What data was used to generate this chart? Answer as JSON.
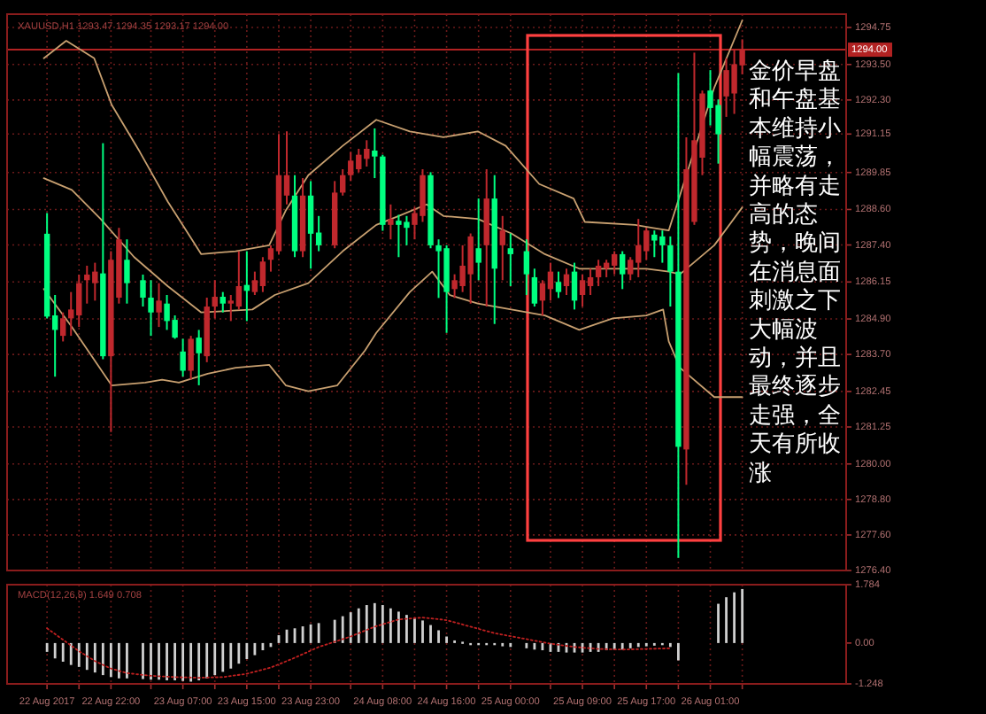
{
  "chart_data": [
    {
      "type": "candlestick",
      "subtitle": "XAUUSD,H1 1293.47 1294.35 1293.17 1294.00",
      "x": [
        "2017-08-22T14:00",
        "2017-08-22T15:00",
        "2017-08-22T16:00",
        "2017-08-22T17:00",
        "2017-08-22T18:00",
        "2017-08-22T19:00",
        "2017-08-22T20:00",
        "2017-08-22T21:00",
        "2017-08-22T22:00",
        "2017-08-22T23:00",
        "2017-08-23T00:00",
        "2017-08-23T02:00",
        "2017-08-23T03:00",
        "2017-08-23T04:00",
        "2017-08-23T05:00",
        "2017-08-23T06:00",
        "2017-08-23T07:00",
        "2017-08-23T08:00",
        "2017-08-23T09:00",
        "2017-08-23T10:00",
        "2017-08-23T11:00",
        "2017-08-23T12:00",
        "2017-08-23T13:00",
        "2017-08-23T14:00",
        "2017-08-23T15:00",
        "2017-08-23T16:00",
        "2017-08-23T17:00",
        "2017-08-23T18:00",
        "2017-08-23T19:00",
        "2017-08-23T20:00",
        "2017-08-23T21:00",
        "2017-08-23T22:00",
        "2017-08-23T23:00",
        "2017-08-24T00:00",
        "2017-08-24T02:00",
        "2017-08-24T03:00",
        "2017-08-24T04:00",
        "2017-08-24T05:00",
        "2017-08-24T06:00",
        "2017-08-24T07:00",
        "2017-08-24T08:00",
        "2017-08-24T09:00",
        "2017-08-24T10:00",
        "2017-08-24T11:00",
        "2017-08-24T12:00",
        "2017-08-24T13:00",
        "2017-08-24T14:00",
        "2017-08-24T15:00",
        "2017-08-24T16:00",
        "2017-08-24T17:00",
        "2017-08-24T18:00",
        "2017-08-24T19:00",
        "2017-08-24T20:00",
        "2017-08-24T21:00",
        "2017-08-24T22:00",
        "2017-08-24T23:00",
        "2017-08-25T00:00",
        "2017-08-25T02:00",
        "2017-08-25T03:00",
        "2017-08-25T04:00",
        "2017-08-25T05:00",
        "2017-08-25T06:00",
        "2017-08-25T07:00",
        "2017-08-25T08:00",
        "2017-08-25T09:00",
        "2017-08-25T10:00",
        "2017-08-25T11:00",
        "2017-08-25T12:00",
        "2017-08-25T13:00",
        "2017-08-25T14:00",
        "2017-08-25T15:00",
        "2017-08-25T16:00",
        "2017-08-25T17:00",
        "2017-08-25T18:00",
        "2017-08-25T19:00",
        "2017-08-25T20:00",
        "2017-08-25T21:00",
        "2017-08-25T22:00",
        "2017-08-25T23:00",
        "2017-08-26T00:00",
        "2017-08-26T01:00",
        "2017-08-26T02:00",
        "2017-08-26T03:00",
        "2017-08-26T04:00",
        "2017-08-26T05:00"
      ],
      "ohlc": [
        [
          1287.78,
          1288.48,
          1284.92,
          1284.98
        ],
        [
          1285.02,
          1285.71,
          1282.95,
          1284.53
        ],
        [
          1284.33,
          1285.12,
          1284.14,
          1284.92
        ],
        [
          1284.92,
          1285.81,
          1284.33,
          1285.22
        ],
        [
          1285.02,
          1286.4,
          1284.63,
          1286.11
        ],
        [
          1286.21,
          1286.7,
          1285.42,
          1286.4
        ],
        [
          1286.11,
          1286.8,
          1285.52,
          1286.5
        ],
        [
          1286.44,
          1290.84,
          1283.54,
          1283.64
        ],
        [
          1283.64,
          1287.19,
          1281.08,
          1286.9
        ],
        [
          1285.62,
          1287.98,
          1285.42,
          1287.59
        ],
        [
          1286.9,
          1287.59,
          1285.42,
          1286.11
        ],
        [
          1286.21,
          1286.4,
          1285.32,
          1285.62
        ],
        [
          1285.62,
          1286.21,
          1284.33,
          1285.12
        ],
        [
          1285.12,
          1286.11,
          1284.63,
          1285.52
        ],
        [
          1285.42,
          1285.71,
          1284.53,
          1284.83
        ],
        [
          1284.87,
          1285.02,
          1284.23,
          1284.27
        ],
        [
          1283.8,
          1284.23,
          1282.95,
          1283.15
        ],
        [
          1283.15,
          1284.33,
          1282.85,
          1284.23
        ],
        [
          1284.27,
          1284.53,
          1282.66,
          1283.74
        ],
        [
          1283.64,
          1285.62,
          1283.44,
          1285.32
        ],
        [
          1285.32,
          1286.21,
          1284.92,
          1285.65
        ],
        [
          1285.65,
          1285.81,
          1285.12,
          1285.42
        ],
        [
          1285.42,
          1285.71,
          1284.83,
          1285.52
        ],
        [
          1285.32,
          1287.19,
          1285.22,
          1286.01
        ],
        [
          1286.05,
          1287.19,
          1284.83,
          1285.85
        ],
        [
          1285.81,
          1286.5,
          1285.71,
          1286.21
        ],
        [
          1286.01,
          1286.99,
          1285.81,
          1286.84
        ],
        [
          1286.9,
          1287.39,
          1286.5,
          1287.29
        ],
        [
          1287.19,
          1291.14,
          1287.09,
          1289.76
        ],
        [
          1289.07,
          1291.24,
          1288.77,
          1289.76
        ],
        [
          1289.07,
          1289.76,
          1286.99,
          1287.19
        ],
        [
          1287.19,
          1289.66,
          1286.99,
          1289.07
        ],
        [
          1289.07,
          1289.56,
          1286.6,
          1287.78
        ],
        [
          1287.82,
          1288.38,
          1287.19,
          1287.39
        ],
        [
          1287.39,
          1289.56,
          1287.29,
          1289.17
        ],
        [
          1289.17,
          1289.96,
          1289.07,
          1289.76
        ],
        [
          1289.76,
          1290.55,
          1289.56,
          1290.25
        ],
        [
          1289.96,
          1290.65,
          1289.86,
          1290.45
        ],
        [
          1290.31,
          1290.94,
          1290.05,
          1290.65
        ],
        [
          1290.59,
          1291.34,
          1289.66,
          1290.39
        ],
        [
          1290.39,
          1290.45,
          1287.88,
          1288.08
        ],
        [
          1288.08,
          1288.77,
          1287.59,
          1288.28
        ],
        [
          1288.22,
          1288.42,
          1286.99,
          1288.08
        ],
        [
          1288.18,
          1288.38,
          1287.39,
          1287.98
        ],
        [
          1288.08,
          1288.67,
          1287.59,
          1288.48
        ],
        [
          1288.38,
          1289.96,
          1288.18,
          1289.76
        ],
        [
          1289.76,
          1289.86,
          1287.29,
          1287.39
        ],
        [
          1287.39,
          1287.59,
          1285.61,
          1287.19
        ],
        [
          1287.29,
          1287.39,
          1284.43,
          1285.81
        ],
        [
          1285.91,
          1286.41,
          1285.61,
          1286.21
        ],
        [
          1286.01,
          1287.39,
          1285.81,
          1286.7
        ],
        [
          1286.41,
          1287.79,
          1285.42,
          1287.69
        ],
        [
          1287.29,
          1288.97,
          1286.21,
          1286.8
        ],
        [
          1287.39,
          1289.96,
          1285.32,
          1288.97
        ],
        [
          1288.97,
          1289.76,
          1284.73,
          1286.6
        ],
        [
          1287.39,
          1288.38,
          1286.21,
          1287.89
        ],
        [
          1287.29,
          1287.79,
          1286.01,
          1287.09
        ],
        [
          1287.19,
          1287.59,
          1285.71,
          1286.41
        ],
        [
          1286.31,
          1286.6,
          1285.32,
          1285.42
        ],
        [
          1285.52,
          1286.21,
          1285.02,
          1286.11
        ],
        [
          1285.91,
          1286.8,
          1285.52,
          1286.5
        ],
        [
          1286.15,
          1286.5,
          1285.61,
          1285.81
        ],
        [
          1286.01,
          1286.6,
          1285.71,
          1286.41
        ],
        [
          1286.5,
          1286.8,
          1285.22,
          1285.52
        ],
        [
          1285.71,
          1286.41,
          1285.32,
          1286.21
        ],
        [
          1286.01,
          1286.6,
          1285.71,
          1286.31
        ],
        [
          1286.31,
          1286.9,
          1286.01,
          1286.7
        ],
        [
          1286.6,
          1286.9,
          1286.31,
          1286.8
        ],
        [
          1286.7,
          1287.19,
          1286.41,
          1287.09
        ],
        [
          1287.09,
          1287.19,
          1285.91,
          1286.41
        ],
        [
          1286.41,
          1286.99,
          1286.21,
          1286.9
        ],
        [
          1286.8,
          1288.28,
          1286.31,
          1287.39
        ],
        [
          1287.19,
          1287.98,
          1286.9,
          1287.89
        ],
        [
          1287.75,
          1287.89,
          1286.99,
          1287.55
        ],
        [
          1287.69,
          1287.89,
          1286.8,
          1287.39
        ],
        [
          1287.39,
          1287.69,
          1285.32,
          1286.5
        ],
        [
          1286.5,
          1293.21,
          1276.83,
          1280.58
        ],
        [
          1280.49,
          1291.04,
          1279.3,
          1289.96
        ],
        [
          1288.18,
          1293.9,
          1288.08,
          1290.94
        ],
        [
          1290.35,
          1292.62,
          1289.76,
          1292.52
        ],
        [
          1292.62,
          1293.31,
          1291.44,
          1292.03
        ],
        [
          1292.13,
          1292.32,
          1290.15,
          1291.14
        ],
        [
          1292.42,
          1293.71,
          1291.73,
          1293.31
        ],
        [
          1292.52,
          1294.0,
          1291.83,
          1293.51
        ],
        [
          1293.47,
          1294.35,
          1293.17,
          1294.0
        ]
      ],
      "colors": [
        "#00ff80",
        "#00ff80",
        "#c0282d",
        "#c0282d",
        "#c0282d",
        "#c0282d",
        "#c0282d",
        "#00ff80",
        "#c0282d",
        "#c0282d",
        "#00ff80",
        "#00ff80",
        "#00ff80",
        "#c0282d",
        "#00ff80",
        "#00ff80",
        "#00ff80",
        "#c0282d",
        "#00ff80",
        "#c0282d",
        "#c0282d",
        "#00ff80",
        "#c0282d",
        "#c0282d",
        "#00ff80",
        "#c0282d",
        "#c0282d",
        "#c0282d",
        "#c0282d",
        "#c0282d",
        "#00ff80",
        "#c0282d",
        "#00ff80",
        "#00ff80",
        "#c0282d",
        "#c0282d",
        "#c0282d",
        "#c0282d",
        "#c0282d",
        "#00ff80",
        "#00ff80",
        "#c0282d",
        "#00ff80",
        "#00ff80",
        "#c0282d",
        "#c0282d",
        "#00ff80",
        "#00ff80",
        "#00ff80",
        "#c0282d",
        "#c0282d",
        "#c0282d",
        "#00ff80",
        "#c0282d",
        "#00ff80",
        "#c0282d",
        "#00ff80",
        "#00ff80",
        "#00ff80",
        "#c0282d",
        "#c0282d",
        "#00ff80",
        "#c0282d",
        "#00ff80",
        "#c0282d",
        "#c0282d",
        "#c0282d",
        "#c0282d",
        "#c0282d",
        "#00ff80",
        "#c0282d",
        "#c0282d",
        "#c0282d",
        "#00ff80",
        "#00ff80",
        "#00ff80",
        "#00ff80",
        "#c0282d",
        "#c0282d",
        "#c0282d",
        "#00ff80",
        "#00ff80",
        "#c0282d",
        "#c0282d",
        "#c0282d"
      ],
      "series": [
        {
          "type": "line",
          "color": "#c8a070",
          "x": [
            "2017-08-22T13:36",
            "2017-08-22T16:24",
            "2017-08-22T19:54",
            "2017-08-22T22:06",
            "2017-08-23T01:36",
            "2017-08-23T05:06",
            "2017-08-23T09:18",
            "2017-08-23T13:36",
            "2017-08-23T17:48",
            "2017-08-23T19:54",
            "2017-08-23T22:42",
            "2017-08-24T03:00",
            "2017-08-24T07:12",
            "2017-08-24T11:24",
            "2017-08-24T15:36",
            "2017-08-24T19:54",
            "2017-08-24T23:24",
            "2017-08-25T03:36",
            "2017-08-25T07:54",
            "2017-08-25T09:18",
            "2017-08-25T15:36",
            "2017-08-25T17:42",
            "2017-08-25T19:48",
            "2017-08-25T22:42",
            "2017-08-26T01:30",
            "2017-08-26T05:00"
          ],
          "values": [
            1293.71,
            1294.3,
            1293.71,
            1292.13,
            1290.55,
            1288.87,
            1287.09,
            1287.19,
            1287.39,
            1288.58,
            1289.76,
            1290.75,
            1291.63,
            1291.24,
            1291.04,
            1291.24,
            1290.75,
            1289.46,
            1288.97,
            1288.18,
            1288.08,
            1287.98,
            1287.89,
            1290.35,
            1292.72,
            1294.99
          ]
        },
        {
          "type": "line",
          "color": "#c8a070",
          "x": [
            "2017-08-22T13:36",
            "2017-08-22T17:06",
            "2017-08-22T20:42",
            "2017-08-23T00:54",
            "2017-08-23T05:06",
            "2017-08-23T09:18",
            "2017-08-23T15:42",
            "2017-08-23T18:30",
            "2017-08-23T22:42",
            "2017-08-24T03:00",
            "2017-08-24T07:12",
            "2017-08-24T10:00",
            "2017-08-24T13:30",
            "2017-08-24T15:36",
            "2017-08-24T19:54",
            "2017-08-25T00:06",
            "2017-08-25T04:18",
            "2017-08-25T08:36",
            "2017-08-25T12:48",
            "2017-08-25T17:00",
            "2017-08-25T19:48",
            "2017-08-25T21:12",
            "2017-08-26T01:30",
            "2017-08-26T05:00"
          ],
          "values": [
            1289.66,
            1289.26,
            1288.28,
            1286.99,
            1286.01,
            1285.12,
            1285.22,
            1285.71,
            1286.11,
            1287.19,
            1288.08,
            1288.38,
            1288.77,
            1288.38,
            1288.28,
            1287.79,
            1287.09,
            1286.6,
            1286.6,
            1286.6,
            1286.5,
            1286.41,
            1287.39,
            1288.67
          ]
        },
        {
          "type": "line",
          "color": "#c8a070",
          "x": [
            "2017-08-22T13:36",
            "2017-08-22T17:06",
            "2017-08-22T22:06",
            "2017-08-23T02:18",
            "2017-08-23T04:24",
            "2017-08-23T06:30",
            "2017-08-23T10:06",
            "2017-08-23T13:36",
            "2017-08-23T17:48",
            "2017-08-23T19:54",
            "2017-08-23T22:42",
            "2017-08-24T02:18",
            "2017-08-24T05:48",
            "2017-08-24T07:12",
            "2017-08-24T11:24",
            "2017-08-24T14:12",
            "2017-08-24T16:24",
            "2017-08-24T19:54",
            "2017-08-25T00:06",
            "2017-08-25T04:18",
            "2017-08-25T08:36",
            "2017-08-25T12:48",
            "2017-08-25T17:00",
            "2017-08-25T19:06",
            "2017-08-25T19:48",
            "2017-08-25T21:12",
            "2017-08-26T01:30",
            "2017-08-26T05:00"
          ],
          "values": [
            1285.91,
            1284.63,
            1282.65,
            1282.75,
            1282.85,
            1282.75,
            1283.05,
            1283.25,
            1283.35,
            1282.65,
            1282.46,
            1282.65,
            1283.84,
            1284.43,
            1285.81,
            1286.5,
            1285.71,
            1285.42,
            1285.22,
            1285.02,
            1284.53,
            1284.92,
            1285.02,
            1285.22,
            1284.14,
            1283.25,
            1282.26,
            1282.26
          ]
        }
      ],
      "annotations": [
        "金价早盘和午盘基本维持小幅震荡，并略有走高的态势，晚间在消息面刺激之下大幅波动，并且最终逐步走强，全天有所收涨"
      ],
      "ref_lines": [
        {
          "axis": "y",
          "value": 1294.0,
          "label": "1294.00",
          "color": "#b22222"
        }
      ],
      "xlim": [
        "2017-08-22T09:00",
        "2017-08-26T18:00"
      ],
      "ylim": [
        1276.4,
        1295.2
      ],
      "xticks": [
        {
          "value": "2017-08-22T14:00",
          "label": null
        },
        {
          "value": "2017-08-22T18:00",
          "label": null
        },
        {
          "value": "2017-08-22T22:00",
          "label": null
        },
        {
          "value": "2017-08-23T03:00",
          "label": null
        },
        {
          "value": "2017-08-23T07:00",
          "label": null
        },
        {
          "value": "2017-08-23T11:00",
          "label": null
        },
        {
          "value": "2017-08-23T15:00",
          "label": null
        },
        {
          "value": "2017-08-23T19:00",
          "label": null
        },
        {
          "value": "2017-08-23T23:00",
          "label": null
        },
        {
          "value": "2017-08-24T04:00",
          "label": null
        },
        {
          "value": "2017-08-24T08:00",
          "label": null
        },
        {
          "value": "2017-08-24T12:00",
          "label": null
        },
        {
          "value": "2017-08-24T16:00",
          "label": null
        },
        {
          "value": "2017-08-24T20:00",
          "label": null
        },
        {
          "value": "2017-08-25T00:00",
          "label": null
        },
        {
          "value": "2017-08-25T05:00",
          "label": null
        },
        {
          "value": "2017-08-25T09:00",
          "label": null
        },
        {
          "value": "2017-08-25T13:00",
          "label": null
        },
        {
          "value": "2017-08-25T17:00",
          "label": null
        },
        {
          "value": "2017-08-25T21:00",
          "label": null
        },
        {
          "value": "2017-08-26T01:00",
          "label": null
        },
        {
          "value": "2017-08-26T05:00",
          "label": null
        }
      ],
      "yticks": [
        {
          "value": 1294.75,
          "label": "1294.75"
        },
        {
          "value": 1293.5,
          "label": "1293.50"
        },
        {
          "value": 1292.3,
          "label": "1292.30"
        },
        {
          "value": 1291.15,
          "label": "1291.15"
        },
        {
          "value": 1289.85,
          "label": "1289.85"
        },
        {
          "value": 1288.6,
          "label": "1288.60"
        },
        {
          "value": 1287.4,
          "label": "1287.40"
        },
        {
          "value": 1286.15,
          "label": "1286.15"
        },
        {
          "value": 1284.9,
          "label": "1284.90"
        },
        {
          "value": 1283.7,
          "label": "1283.70"
        },
        {
          "value": 1282.45,
          "label": "1282.45"
        },
        {
          "value": 1281.25,
          "label": "1281.25"
        },
        {
          "value": 1280.0,
          "label": "1280.00"
        },
        {
          "value": 1278.8,
          "label": "1278.80"
        },
        {
          "value": 1277.6,
          "label": "1277.60"
        },
        {
          "value": 1276.4,
          "label": "1276.40"
        }
      ],
      "grid": true,
      "tick_labels": "y"
    },
    {
      "type": "bar",
      "title": "MACD(12,26,9) 1.649 0.708",
      "series": [
        {
          "type": "bar",
          "color": "#d0d0d0",
          "x": [
            "2017-08-22T14:00",
            "2017-08-22T15:00",
            "2017-08-22T16:00",
            "2017-08-22T17:00",
            "2017-08-22T18:00",
            "2017-08-22T19:00",
            "2017-08-22T20:00",
            "2017-08-22T21:00",
            "2017-08-22T22:00",
            "2017-08-22T23:00",
            "2017-08-23T00:00",
            "2017-08-23T02:00",
            "2017-08-23T03:00",
            "2017-08-23T04:00",
            "2017-08-23T05:00",
            "2017-08-23T06:00",
            "2017-08-23T07:00",
            "2017-08-23T08:00",
            "2017-08-23T09:00",
            "2017-08-23T10:00",
            "2017-08-23T11:00",
            "2017-08-23T12:00",
            "2017-08-23T13:00",
            "2017-08-23T14:00",
            "2017-08-23T15:00",
            "2017-08-23T16:00",
            "2017-08-23T17:00",
            "2017-08-23T18:00",
            "2017-08-23T19:00",
            "2017-08-23T20:00",
            "2017-08-23T21:00",
            "2017-08-23T22:00",
            "2017-08-23T23:00",
            "2017-08-24T00:00",
            "2017-08-24T02:00",
            "2017-08-24T03:00",
            "2017-08-24T04:00",
            "2017-08-24T05:00",
            "2017-08-24T06:00",
            "2017-08-24T07:00",
            "2017-08-24T08:00",
            "2017-08-24T09:00",
            "2017-08-24T10:00",
            "2017-08-24T11:00",
            "2017-08-24T12:00",
            "2017-08-24T13:00",
            "2017-08-24T14:00",
            "2017-08-24T15:00",
            "2017-08-24T16:00",
            "2017-08-24T17:00",
            "2017-08-24T18:00",
            "2017-08-24T19:00",
            "2017-08-24T20:00",
            "2017-08-24T21:00",
            "2017-08-24T22:00",
            "2017-08-24T23:00",
            "2017-08-25T00:00",
            "2017-08-25T02:00",
            "2017-08-25T03:00",
            "2017-08-25T04:00",
            "2017-08-25T05:00",
            "2017-08-25T06:00",
            "2017-08-25T07:00",
            "2017-08-25T08:00",
            "2017-08-25T09:00",
            "2017-08-25T10:00",
            "2017-08-25T11:00",
            "2017-08-25T12:00",
            "2017-08-25T13:00",
            "2017-08-25T14:00",
            "2017-08-25T15:00",
            "2017-08-25T16:00",
            "2017-08-25T17:00",
            "2017-08-25T18:00",
            "2017-08-25T19:00",
            "2017-08-25T20:00",
            "2017-08-25T21:00",
            "2017-08-26T02:00",
            "2017-08-26T03:00",
            "2017-08-26T04:00",
            "2017-08-26T05:00"
          ],
          "values": [
            -0.27,
            -0.47,
            -0.57,
            -0.67,
            -0.73,
            -0.82,
            -0.9,
            -0.98,
            -1.04,
            -1.08,
            -1.08,
            -1.1,
            -1.12,
            -1.12,
            -1.14,
            -1.14,
            -1.16,
            -1.18,
            -1.14,
            -1.08,
            -0.98,
            -0.88,
            -0.78,
            -0.63,
            -0.49,
            -0.37,
            -0.22,
            -0.12,
            0.24,
            0.41,
            0.45,
            0.51,
            0.57,
            0.61,
            0.71,
            0.82,
            0.94,
            1.06,
            1.16,
            1.22,
            1.16,
            1.06,
            0.96,
            0.86,
            0.75,
            0.69,
            0.55,
            0.39,
            0.2,
            0.08,
            0.04,
            -0.02,
            -0.04,
            -0.02,
            -0.06,
            -0.1,
            -0.12,
            -0.16,
            -0.2,
            -0.22,
            -0.27,
            -0.27,
            -0.29,
            -0.29,
            -0.29,
            -0.27,
            -0.27,
            -0.22,
            -0.2,
            -0.2,
            -0.16,
            -0.12,
            -0.1,
            -0.08,
            -0.06,
            -0.12,
            -0.53,
            1.2,
            1.4,
            1.55,
            1.65
          ]
        },
        {
          "type": "line",
          "color": "#c02020",
          "line_style": "dotted",
          "x": [
            "2017-08-22T14:00",
            "2017-08-22T16:00",
            "2017-08-22T18:00",
            "2017-08-22T20:00",
            "2017-08-22T22:00",
            "2017-08-23T00:00",
            "2017-08-23T03:00",
            "2017-08-23T06:00",
            "2017-08-23T09:00",
            "2017-08-23T12:00",
            "2017-08-23T15:00",
            "2017-08-23T18:00",
            "2017-08-23T21:00",
            "2017-08-24T00:00",
            "2017-08-24T04:00",
            "2017-08-24T07:00",
            "2017-08-24T10:00",
            "2017-08-24T13:00",
            "2017-08-24T16:00",
            "2017-08-24T19:00",
            "2017-08-24T22:00",
            "2017-08-25T02:00",
            "2017-08-25T05:00",
            "2017-08-25T08:00",
            "2017-08-25T11:00",
            "2017-08-25T14:00",
            "2017-08-25T17:00",
            "2017-08-25T20:00"
          ],
          "values": [
            0.45,
            0.1,
            -0.25,
            -0.55,
            -0.78,
            -0.92,
            -1.0,
            -1.04,
            -1.06,
            -1.04,
            -0.94,
            -0.75,
            -0.45,
            -0.12,
            0.2,
            0.5,
            0.72,
            0.78,
            0.7,
            0.5,
            0.3,
            0.12,
            -0.02,
            -0.12,
            -0.18,
            -0.2,
            -0.18,
            -0.16
          ]
        }
      ],
      "xlim": [
        "2017-08-22T09:00",
        "2017-08-26T18:00"
      ],
      "ylim": [
        -1.248,
        1.784
      ],
      "xticks": [
        {
          "value": "2017-08-22T14:00",
          "label": "22 Aug 2017"
        },
        {
          "value": "2017-08-22T18:00",
          "label": null
        },
        {
          "value": "2017-08-22T22:00",
          "label": "22 Aug 22:00"
        },
        {
          "value": "2017-08-23T03:00",
          "label": null
        },
        {
          "value": "2017-08-23T07:00",
          "label": "23 Aug 07:00"
        },
        {
          "value": "2017-08-23T11:00",
          "label": null
        },
        {
          "value": "2017-08-23T15:00",
          "label": "23 Aug 15:00"
        },
        {
          "value": "2017-08-23T19:00",
          "label": null
        },
        {
          "value": "2017-08-23T23:00",
          "label": "23 Aug 23:00"
        },
        {
          "value": "2017-08-24T04:00",
          "label": null
        },
        {
          "value": "2017-08-24T08:00",
          "label": "24 Aug 08:00"
        },
        {
          "value": "2017-08-24T12:00",
          "label": null
        },
        {
          "value": "2017-08-24T16:00",
          "label": "24 Aug 16:00"
        },
        {
          "value": "2017-08-24T20:00",
          "label": null
        },
        {
          "value": "2017-08-25T00:00",
          "label": "25 Aug 00:00"
        },
        {
          "value": "2017-08-25T05:00",
          "label": null
        },
        {
          "value": "2017-08-25T09:00",
          "label": "25 Aug 09:00"
        },
        {
          "value": "2017-08-25T13:00",
          "label": null
        },
        {
          "value": "2017-08-25T17:00",
          "label": "25 Aug 17:00"
        },
        {
          "value": "2017-08-25T21:00",
          "label": null
        },
        {
          "value": "2017-08-26T01:00",
          "label": "26 Aug 01:00"
        },
        {
          "value": "2017-08-26T05:00",
          "label": null
        }
      ],
      "yticks": [
        {
          "value": 1.784,
          "label": "1.784"
        },
        {
          "value": 0,
          "label": "0.00"
        },
        {
          "value": -1.248,
          "label": "-1.248"
        }
      ],
      "grid": "x"
    }
  ]
}
